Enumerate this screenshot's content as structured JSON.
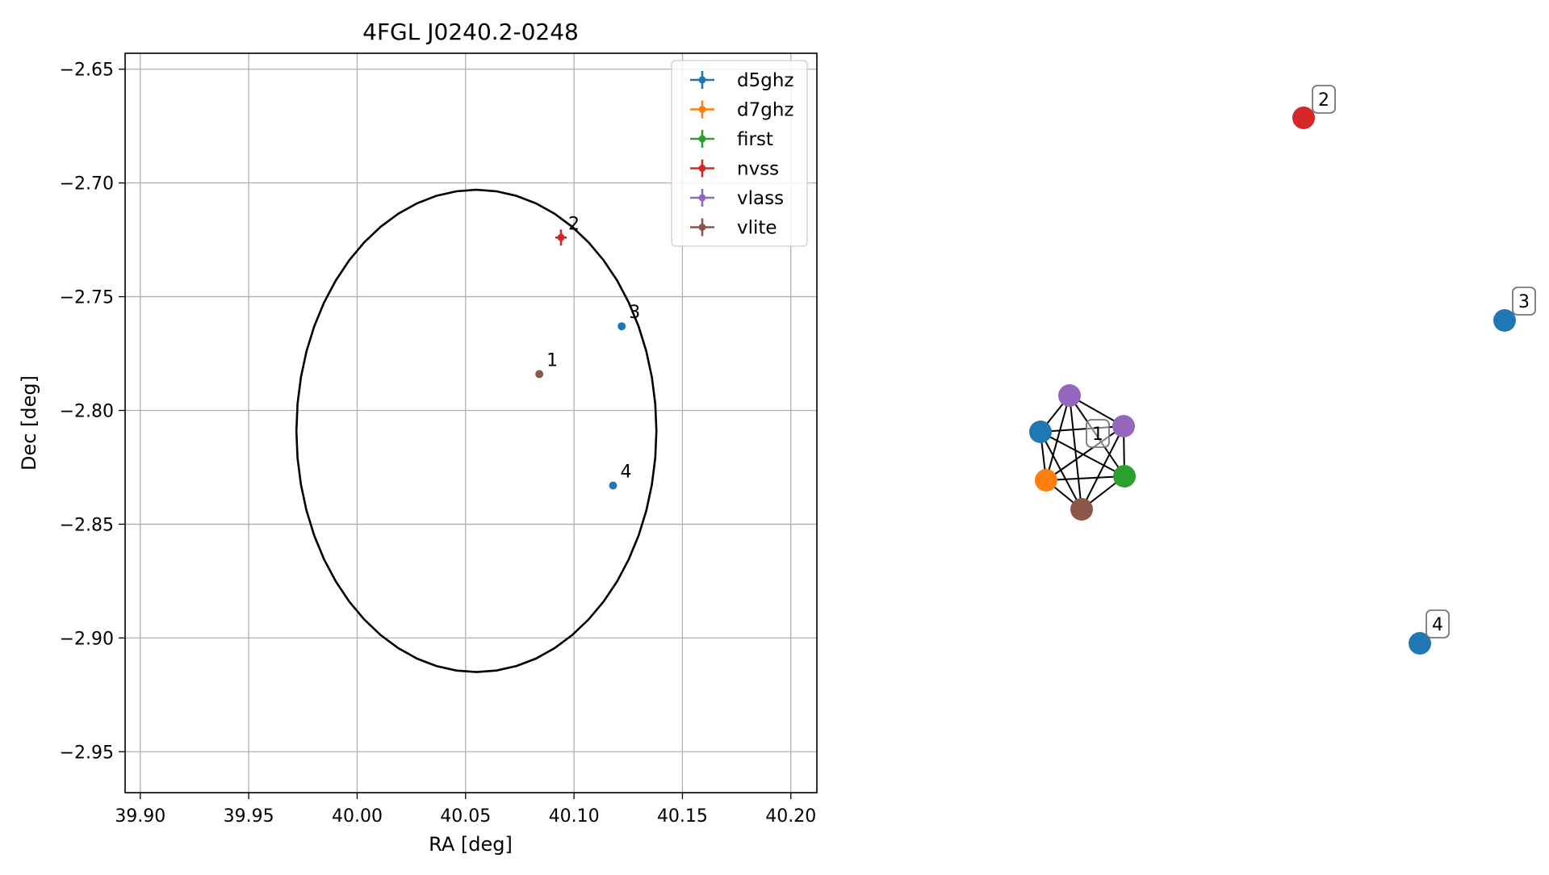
{
  "chart_data": [
    {
      "type": "scatter",
      "title": "4FGL J0240.2-0248",
      "xlabel": "RA [deg]",
      "ylabel": "Dec [deg]",
      "xlim": [
        39.893,
        40.212
      ],
      "ylim": [
        -2.968,
        -2.643
      ],
      "xticks": [
        39.9,
        39.95,
        40.0,
        40.05,
        40.1,
        40.15,
        40.2
      ],
      "xtick_labels": [
        "39.90",
        "39.95",
        "40.00",
        "40.05",
        "40.10",
        "40.15",
        "40.20"
      ],
      "yticks": [
        -2.65,
        -2.7,
        -2.75,
        -2.8,
        -2.85,
        -2.9,
        -2.95
      ],
      "ytick_labels": [
        "−2.65",
        "−2.70",
        "−2.75",
        "−2.80",
        "−2.85",
        "−2.90",
        "−2.95"
      ],
      "grid": true,
      "legend_position": "top-right",
      "series": [
        {
          "name": "d5ghz",
          "color": "#1f77b4",
          "points": [
            {
              "label": "3",
              "x": 40.122,
              "y": -2.763
            },
            {
              "label": "4",
              "x": 40.118,
              "y": -2.833
            }
          ]
        },
        {
          "name": "d7ghz",
          "color": "#ff7f0e",
          "points": []
        },
        {
          "name": "first",
          "color": "#2ca02c",
          "points": []
        },
        {
          "name": "nvss",
          "color": "#d62728",
          "points": [
            {
              "label": "2",
              "x": 40.094,
              "y": -2.724
            }
          ]
        },
        {
          "name": "vlass",
          "color": "#9467bd",
          "points": []
        },
        {
          "name": "vlite",
          "color": "#8c564b",
          "points": [
            {
              "label": "1",
              "x": 40.084,
              "y": -2.784
            }
          ]
        }
      ],
      "ellipse": {
        "ra_center": 40.055,
        "dec_center": -2.809,
        "ra_semi_axis": 0.083,
        "dec_semi_axis": 0.106,
        "color": "#000000"
      }
    },
    {
      "type": "network-graph",
      "nodes": [
        {
          "id": "d5ghz-1",
          "color": "#1f77b4"
        },
        {
          "id": "vlass-1a",
          "color": "#9467bd"
        },
        {
          "id": "vlass-1b",
          "color": "#9467bd"
        },
        {
          "id": "d7ghz-1",
          "color": "#ff7f0e"
        },
        {
          "id": "first-1",
          "color": "#2ca02c"
        },
        {
          "id": "vlite-1",
          "color": "#8c564b"
        },
        {
          "id": "nvss-2",
          "color": "#d62728"
        },
        {
          "id": "d5ghz-3",
          "color": "#1f77b4"
        },
        {
          "id": "d5ghz-4",
          "color": "#1f77b4"
        }
      ],
      "edges": [
        [
          "d5ghz-1",
          "vlass-1a"
        ],
        [
          "d5ghz-1",
          "vlass-1b"
        ],
        [
          "d5ghz-1",
          "d7ghz-1"
        ],
        [
          "d5ghz-1",
          "first-1"
        ],
        [
          "d5ghz-1",
          "vlite-1"
        ],
        [
          "vlass-1a",
          "vlass-1b"
        ],
        [
          "vlass-1a",
          "d7ghz-1"
        ],
        [
          "vlass-1a",
          "first-1"
        ],
        [
          "vlass-1a",
          "vlite-1"
        ],
        [
          "vlass-1b",
          "d7ghz-1"
        ],
        [
          "vlass-1b",
          "first-1"
        ],
        [
          "vlass-1b",
          "vlite-1"
        ],
        [
          "d7ghz-1",
          "first-1"
        ],
        [
          "d7ghz-1",
          "vlite-1"
        ],
        [
          "first-1",
          "vlite-1"
        ]
      ],
      "group_labels": [
        {
          "text": "1",
          "members": [
            "d5ghz-1",
            "vlass-1a",
            "vlass-1b",
            "d7ghz-1",
            "first-1",
            "vlite-1"
          ]
        },
        {
          "text": "2",
          "members": [
            "nvss-2"
          ]
        },
        {
          "text": "3",
          "members": [
            "d5ghz-3"
          ]
        },
        {
          "text": "4",
          "members": [
            "d5ghz-4"
          ]
        }
      ]
    }
  ]
}
